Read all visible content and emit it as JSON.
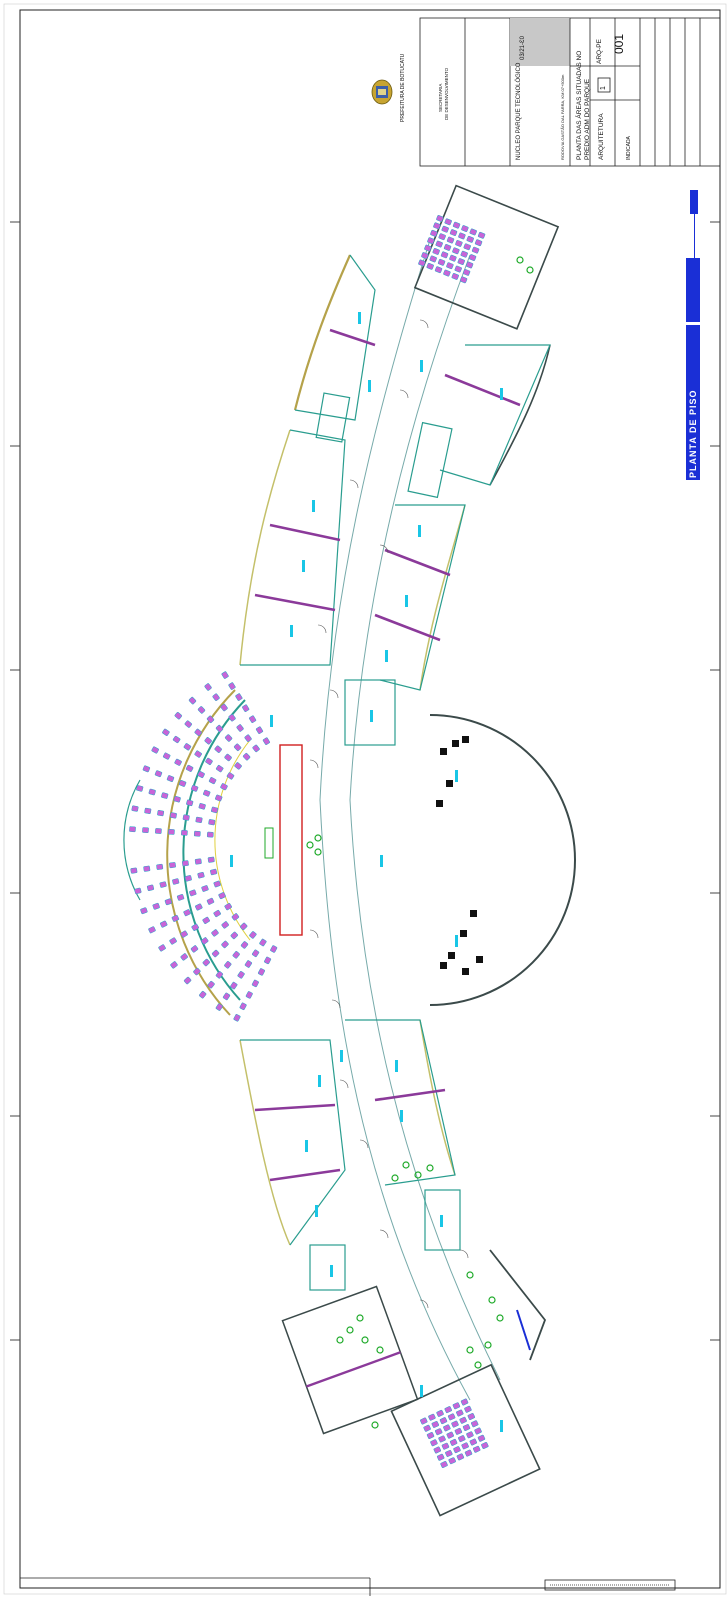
{
  "title_block": {
    "prefeitura": "PREFEITURA DE BOTUCATU",
    "secretaria_line1": "SECRETARIA",
    "secretaria_line2": "DE DESENVOLVIMENTO",
    "project_name": "NUCLEO PARQUE TECNOLÓGICO",
    "address": "RODOVIA GASTÃO DAL FARRA, KM 07+500m",
    "sheet_title_line1": "PLANTA DAS ÁREAS SITUADAS NO",
    "sheet_title_line2": "PREDIO ADM DO PARQUE",
    "discipline": "ARQUITETURA",
    "sheet_code": "ARQ-PE",
    "sheet_number": "001",
    "sheet_total": "1",
    "scale": "INDICADA",
    "date": "03/21-Ɛ0",
    "colors": {
      "seal": "#c7a431",
      "gray_band": "#c8c8c8",
      "line": "#222222"
    }
  },
  "banner": {
    "label": "PLANTA DE PISO",
    "color": "#1a2fd6"
  },
  "plan": {
    "colors": {
      "wall": "#2a9d8f",
      "wall_dark": "#3b4a4a",
      "partition": "#8b3a9a",
      "seat_fill": "#c864d8",
      "seat_edge": "#2aa4c8",
      "plant": "#1faa2a",
      "label": "#19c6e6",
      "stage_red": "#d12020",
      "glazing": "#c4c06a"
    }
  }
}
